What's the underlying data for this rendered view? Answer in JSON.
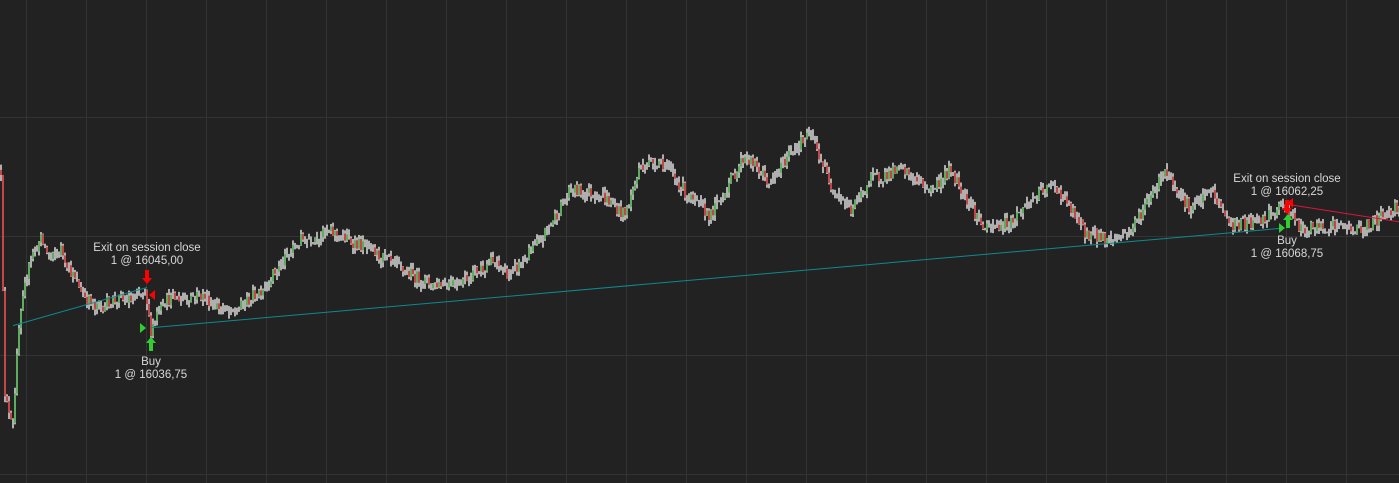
{
  "chart_data": {
    "type": "candlestick",
    "title": "",
    "xlabel": "",
    "ylabel": "",
    "ylim": [
      16000.6,
      16114.6
    ],
    "grid": true,
    "colors": {
      "background": "#222222",
      "grid": "#333333",
      "up": "#32cd32",
      "down": "#ff0000",
      "wick": "#d3d3d3",
      "winning_trade_line": "#0e8a8f",
      "losing_trade_line": "#dc143c"
    },
    "price_path": [
      [
        0,
        16074.5
      ],
      [
        2,
        16020.25
      ],
      [
        6,
        16015.5
      ],
      [
        9,
        16036.75
      ],
      [
        14,
        16053.25
      ],
      [
        20,
        16058
      ],
      [
        25,
        16053.25
      ],
      [
        30,
        16055.75
      ],
      [
        37,
        16048.5
      ],
      [
        47,
        16041.5
      ],
      [
        55,
        16043.75
      ],
      [
        65,
        16043.75
      ],
      [
        72,
        16045
      ],
      [
        75,
        16036.75
      ],
      [
        80,
        16043.75
      ],
      [
        100,
        16045
      ],
      [
        115,
        16040.25
      ],
      [
        130,
        16046.25
      ],
      [
        150,
        16058
      ],
      [
        165,
        16059.75
      ],
      [
        180,
        16056.75
      ],
      [
        200,
        16051
      ],
      [
        215,
        16047.5
      ],
      [
        230,
        16048.5
      ],
      [
        245,
        16052.75
      ],
      [
        255,
        16049.75
      ],
      [
        270,
        16058
      ],
      [
        285,
        16069.75
      ],
      [
        300,
        16068.75
      ],
      [
        312,
        16063.75
      ],
      [
        320,
        16075.75
      ],
      [
        330,
        16076.75
      ],
      [
        345,
        16067.5
      ],
      [
        355,
        16063.75
      ],
      [
        372,
        16078
      ],
      [
        385,
        16071
      ],
      [
        395,
        16079.25
      ],
      [
        405,
        16082.75
      ],
      [
        415,
        16071
      ],
      [
        425,
        16065
      ],
      [
        435,
        16072.25
      ],
      [
        450,
        16074.5
      ],
      [
        465,
        16069.75
      ],
      [
        475,
        16074.5
      ],
      [
        492,
        16060.25
      ],
      [
        505,
        16062.25
      ],
      [
        515,
        16067.5
      ],
      [
        527,
        16071
      ],
      [
        542,
        16059.75
      ],
      [
        555,
        16058
      ],
      [
        565,
        16060.25
      ],
      [
        582,
        16074.5
      ],
      [
        595,
        16065
      ],
      [
        605,
        16069.75
      ],
      [
        615,
        16061.5
      ],
      [
        630,
        16062.25
      ],
      [
        642,
        16066.25
      ],
      [
        650,
        16060.25
      ],
      [
        665,
        16061.5
      ],
      [
        680,
        16060.25
      ],
      [
        699,
        16066.25
      ]
    ],
    "trade_lines": [
      {
        "from": [
          6,
          16037.75
        ],
        "to": [
          73,
          16046.75
        ],
        "result": "win"
      },
      {
        "from": [
          75,
          16037.25
        ],
        "to": [
          641,
          16060.75
        ],
        "result": "win"
      },
      {
        "from": [
          645,
          16066.25
        ],
        "to": [
          699,
          16062.25
        ],
        "result": "loss"
      }
    ],
    "annotations": [
      {
        "type": "exit",
        "bar": 73,
        "price": 16045.0,
        "text": "Exit on session close",
        "detail": "1 @ 16045,00"
      },
      {
        "type": "buy",
        "bar": 75,
        "price": 16036.75,
        "text": "Buy",
        "detail": "1 @ 16036,75"
      },
      {
        "type": "exit",
        "bar": 643,
        "price": 16062.25,
        "text": "Exit on session close",
        "detail": "1 @ 16062,25"
      },
      {
        "type": "buy",
        "bar": 643,
        "price": 16068.75,
        "text": "Buy",
        "detail": "1 @ 16068,75"
      }
    ]
  }
}
